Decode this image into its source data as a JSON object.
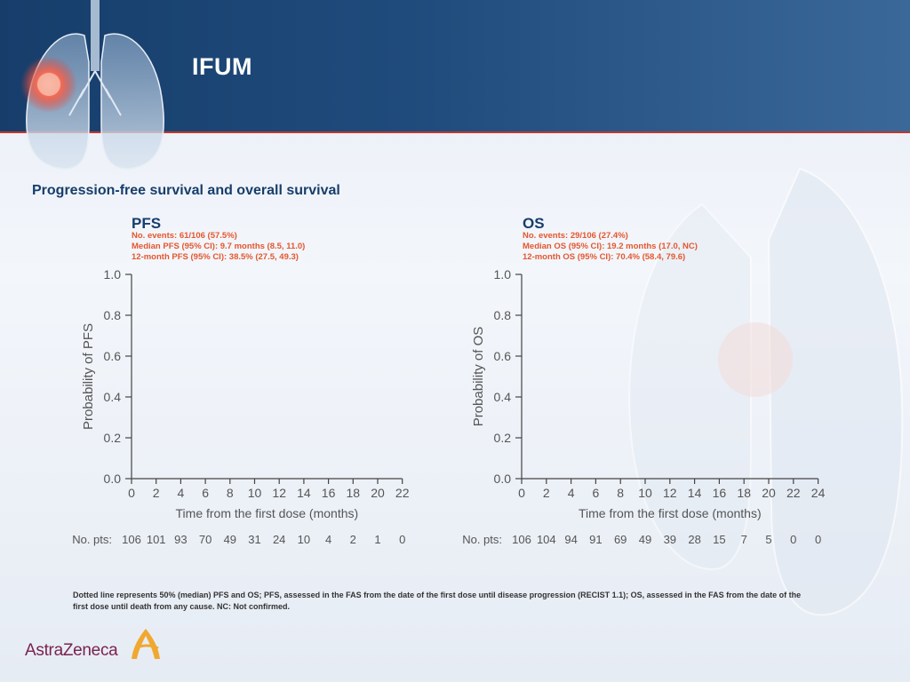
{
  "header": {
    "title": "IFUM"
  },
  "slide": {
    "subtitle": "Progression-free survival and overall survival"
  },
  "colors": {
    "header_dark": "#173e6b",
    "accent_orange": "#e4572e",
    "rule_red": "#c0392b"
  },
  "pfs": {
    "label": "PFS",
    "stats": [
      "No. events: 61/106 (57.5%)",
      "Median PFS (95% CI): 9.7 months (8.5, 11.0)",
      "12-month PFS (95% CI): 38.5% (27.5, 49.3)"
    ]
  },
  "os": {
    "label": "OS",
    "stats": [
      "No. events: 29/106 (27.4%)",
      "Median OS (95% CI): 19.2 months (17.0, NC)",
      "12-month OS (95% CI): 70.4% (58.4, 79.6)"
    ]
  },
  "chart_data": [
    {
      "type": "line",
      "ylabel": "Probability of PFS",
      "xlabel": "Time from the first dose (months)",
      "ylim": [
        0,
        1
      ],
      "yticks": [
        "0.0",
        "0.2",
        "0.4",
        "0.6",
        "0.8",
        "1.0"
      ],
      "xlim": [
        0,
        22
      ],
      "xticks": [
        "0",
        "2",
        "4",
        "6",
        "8",
        "10",
        "12",
        "14",
        "16",
        "18",
        "20",
        "22"
      ],
      "at_risk_label": "No. pts:",
      "at_risk": [
        "106",
        "101",
        "93",
        "70",
        "49",
        "31",
        "24",
        "10",
        "4",
        "2",
        "1",
        "0"
      ]
    },
    {
      "type": "line",
      "ylabel": "Probability of OS",
      "xlabel": "Time from the first dose (months)",
      "ylim": [
        0,
        1
      ],
      "yticks": [
        "0.0",
        "0.2",
        "0.4",
        "0.6",
        "0.8",
        "1.0"
      ],
      "xlim": [
        0,
        24
      ],
      "xticks": [
        "0",
        "2",
        "4",
        "6",
        "8",
        "10",
        "12",
        "14",
        "16",
        "18",
        "20",
        "22",
        "24"
      ],
      "at_risk_label": "No. pts:",
      "at_risk": [
        "106",
        "104",
        "94",
        "91",
        "69",
        "49",
        "39",
        "28",
        "15",
        "7",
        "5",
        "0",
        "0"
      ]
    }
  ],
  "footnote": "Dotted line represents 50% (median) PFS and OS; PFS, assessed in the FAS from the date of the first dose until disease progression (RECIST 1.1);  OS, assessed in the FAS from the date of the first dose until death from any cause. NC: Not confirmed.",
  "logo": {
    "text": "AstraZeneca",
    "icon": "astrazeneca-logo-icon"
  }
}
